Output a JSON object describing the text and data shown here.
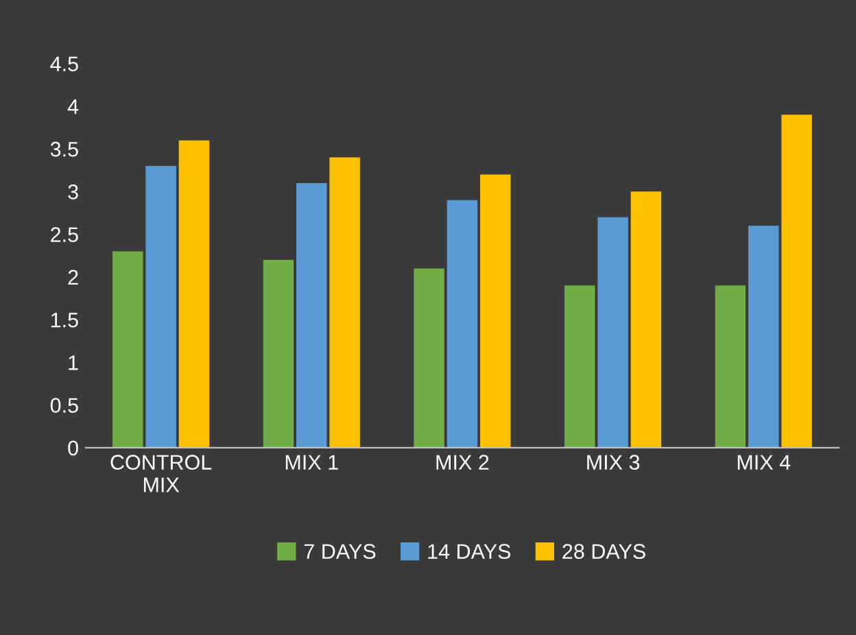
{
  "chart_data": {
    "type": "bar",
    "categories": [
      "CONTROL\nMIX",
      "MIX 1",
      "MIX 2",
      "MIX 3",
      "MIX 4"
    ],
    "series": [
      {
        "name": "7 DAYS",
        "color": "#70ad47",
        "values": [
          2.3,
          2.2,
          2.1,
          1.9,
          1.9
        ]
      },
      {
        "name": "14 DAYS",
        "color": "#5b9bd5",
        "values": [
          3.3,
          3.1,
          2.9,
          2.7,
          2.6
        ]
      },
      {
        "name": "28 DAYS",
        "color": "#ffc000",
        "values": [
          3.6,
          3.4,
          3.2,
          3.0,
          3.9
        ]
      }
    ],
    "ylim": [
      0,
      4.5
    ],
    "yticks": [
      0,
      {
        "value": 0.5,
        "label": "0.5"
      },
      1,
      {
        "value": 1.5,
        "label": "1.5"
      },
      2,
      {
        "value": 2.5,
        "label": "2.5"
      },
      3,
      {
        "value": 3.5,
        "label": "3.5"
      },
      4,
      {
        "value": 4.5,
        "label": "4.5"
      }
    ],
    "grid": false,
    "legend": "bottom"
  }
}
